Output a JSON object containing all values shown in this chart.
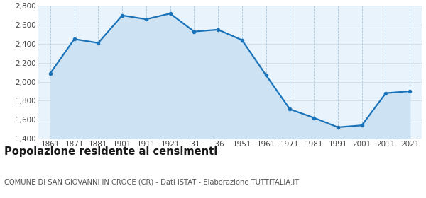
{
  "x_positions": [
    0,
    1,
    2,
    3,
    4,
    5,
    6,
    7,
    8,
    9,
    10,
    11,
    12,
    13,
    14,
    15
  ],
  "population": [
    2090,
    2450,
    2410,
    2700,
    2660,
    2720,
    2530,
    2550,
    2440,
    2070,
    1710,
    1620,
    1520,
    1540,
    1880,
    1900
  ],
  "xtick_labels": [
    "1861",
    "1871",
    "1881",
    "1901",
    "1911",
    "1921",
    "’31",
    "’36",
    "1951",
    "1961",
    "1971",
    "1981",
    "1991",
    "2001",
    "2011",
    "2021"
  ],
  "ylim": [
    1400,
    2800
  ],
  "yticks": [
    1400,
    1600,
    1800,
    2000,
    2200,
    2400,
    2600,
    2800
  ],
  "ytick_labels": [
    "1,400",
    "1,600",
    "1,800",
    "2,000",
    "2,200",
    "2,400",
    "2,600",
    "2,800"
  ],
  "line_color": "#1a72b8",
  "fill_color": "#cde3f3",
  "marker_color": "#1a72b8",
  "grid_color_x": "#aac4d8",
  "grid_color_y": "#c8d8e8",
  "background_color": "#e8f3fb",
  "title": "Popolazione residente ai censimenti",
  "subtitle": "COMUNE DI SAN GIOVANNI IN CROCE (CR) - Dati ISTAT - Elaborazione TUTTITALIA.IT",
  "title_fontsize": 10.5,
  "subtitle_fontsize": 7.2,
  "tick_fontsize": 7.5
}
